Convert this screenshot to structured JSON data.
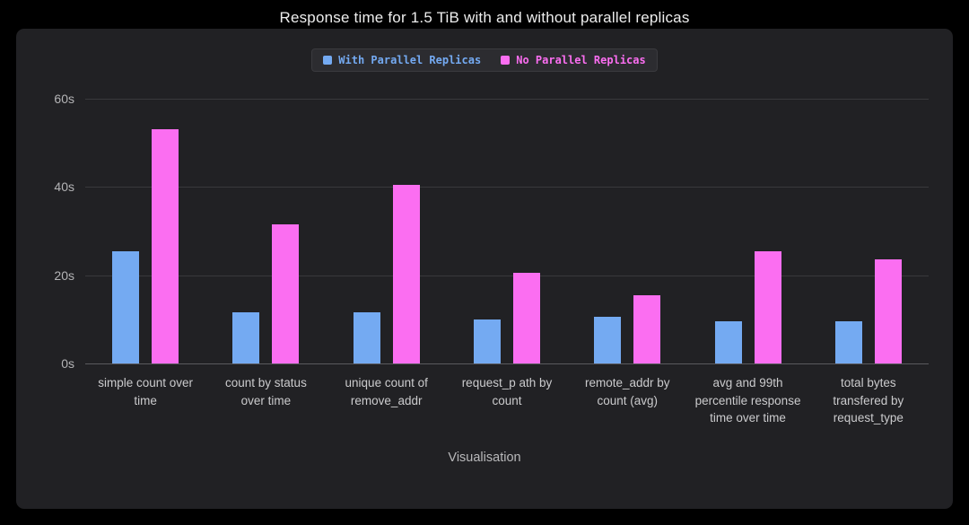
{
  "chart_data": {
    "type": "bar",
    "title": "Response time for 1.5 TiB with and without parallel replicas",
    "xlabel": "Visualisation",
    "ylim": [
      0,
      60
    ],
    "yticks": {
      "values": [
        0,
        20,
        40,
        60
      ],
      "labels": [
        "0s",
        "20s",
        "40s",
        "60s"
      ]
    },
    "legend_position": "top-center",
    "grid": true,
    "categories": [
      "simple count over time",
      "count by status over time",
      "unique count of remove_addr",
      "request_p ath by count",
      "remote_addr by count (avg)",
      "avg and 99th percentile response time over time",
      "total bytes transfered by request_type"
    ],
    "series": [
      {
        "name": "With Parallel Replicas",
        "color": "#74aaf2",
        "values": [
          25.5,
          11.5,
          11.5,
          10,
          10.5,
          9.5,
          9.5
        ]
      },
      {
        "name": "No Parallel Replicas",
        "color": "#fb6ef1",
        "values": [
          53,
          31.5,
          40.5,
          20.5,
          15.5,
          25.5,
          23.5
        ]
      }
    ]
  },
  "colors": {
    "background": "#000000",
    "panel": "#212124",
    "gridline": "#39393c",
    "axis_baseline": "#5a5a5e",
    "title_text": "#ededed",
    "tick_text": "#b4b4b6",
    "category_text": "#cbcbcd"
  }
}
